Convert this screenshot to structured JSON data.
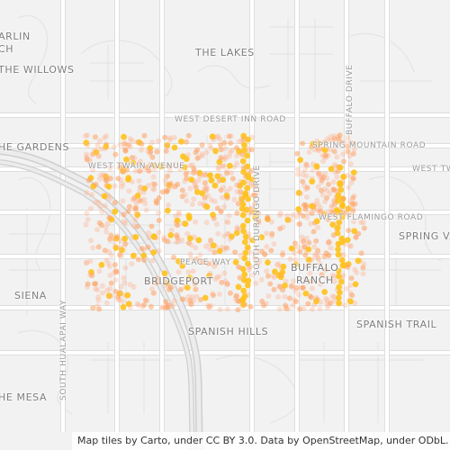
{
  "map": {
    "attribution": "Map tiles by Carto, under CC BY 3.0. Data by OpenStreetMap, under ODbL.",
    "colors": {
      "background": "#f2f2f2",
      "road_major": "#ffffff",
      "road_outline": "#dedede",
      "highway": "#d9d9d9",
      "point_light": "#ffb089",
      "point_warm": "#ffa060",
      "point_hot": "#ffc21c"
    }
  },
  "labels": {
    "areas": {
      "arlington": "ARLIN",
      "the_willows": "THE WILLOWS",
      "the_lakes": "THE LAKES",
      "the_gardens": "HE GARDENS",
      "bridgeport": "BRIDGEPORT",
      "buffalo": "BUFFALO",
      "ranch": "RANCH",
      "siena": "SIENA",
      "spanish_hills": "SPANISH HILLS",
      "spanish_trail": "SPANISH TRAIL",
      "the_mesa": "HE MESA",
      "spring_valley": "SPRING VA",
      "ch": "CH"
    },
    "roads": {
      "west_desert_inn": "WEST DESERT INN ROAD",
      "spring_mountain": "SPRING MOUNTAIN ROAD",
      "west_twain": "WEST TWAIN AVENUE",
      "west_tw_right": "WEST TW",
      "west_flamingo": "WEST FLAMINGO ROAD",
      "peace_way": "PEACE WAY",
      "south_durango": "SOUTH DURANGO DRIVE",
      "buffalo_drive": "BUFFALO DRIVE",
      "south_hualapai": "SOUTH HUALAPAI WAY"
    }
  }
}
